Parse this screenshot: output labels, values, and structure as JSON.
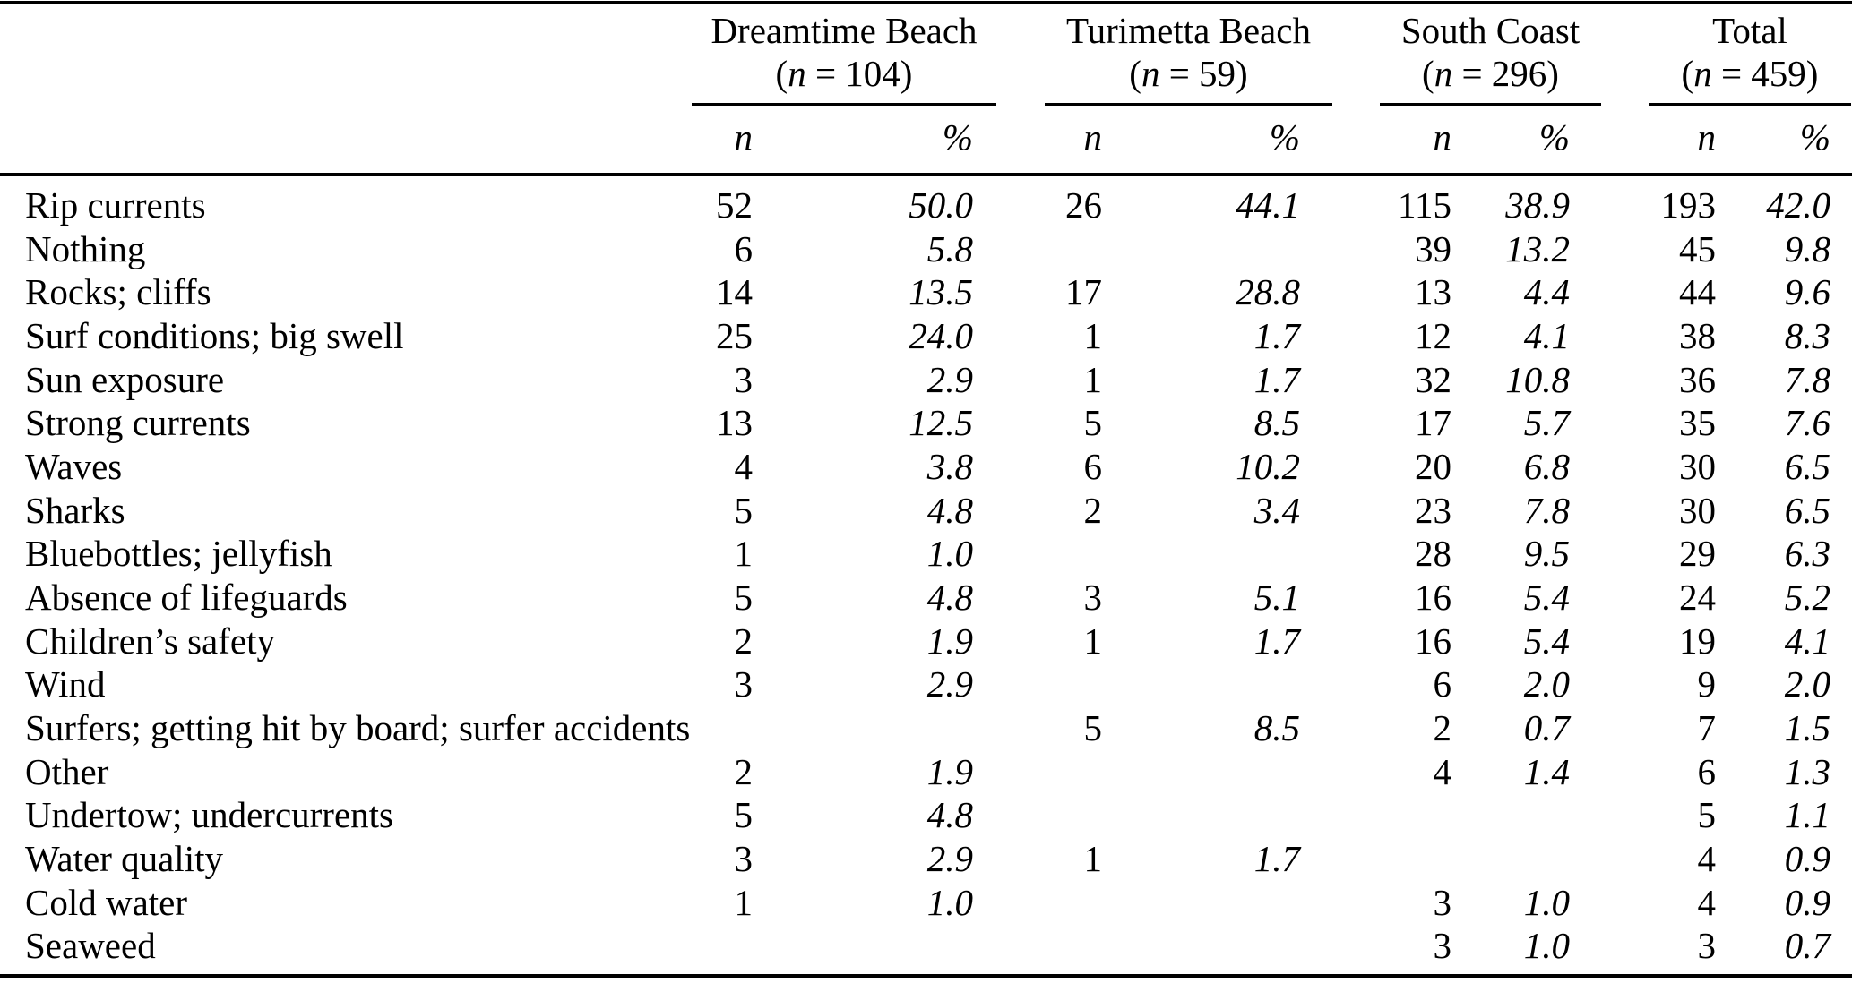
{
  "table": {
    "groups": [
      {
        "name": "Dreamtime Beach",
        "n_label": "(n = 104)"
      },
      {
        "name": "Turimetta Beach",
        "n_label": "(n = 59)"
      },
      {
        "name": "South Coast",
        "n_label": "(n = 296)"
      },
      {
        "name": "Total",
        "n_label": "(n = 459)"
      }
    ],
    "subheaders": {
      "count": "n",
      "percent": "%"
    },
    "rows": [
      {
        "label": "Rip currents",
        "values": [
          "52",
          "50.0",
          "26",
          "44.1",
          "115",
          "38.9",
          "193",
          "42.0"
        ]
      },
      {
        "label": "Nothing",
        "values": [
          "6",
          "5.8",
          "",
          "",
          "39",
          "13.2",
          "45",
          "9.8"
        ]
      },
      {
        "label": "Rocks; cliffs",
        "values": [
          "14",
          "13.5",
          "17",
          "28.8",
          "13",
          "4.4",
          "44",
          "9.6"
        ]
      },
      {
        "label": "Surf conditions; big swell",
        "values": [
          "25",
          "24.0",
          "1",
          "1.7",
          "12",
          "4.1",
          "38",
          "8.3"
        ]
      },
      {
        "label": "Sun exposure",
        "values": [
          "3",
          "2.9",
          "1",
          "1.7",
          "32",
          "10.8",
          "36",
          "7.8"
        ]
      },
      {
        "label": "Strong currents",
        "values": [
          "13",
          "12.5",
          "5",
          "8.5",
          "17",
          "5.7",
          "35",
          "7.6"
        ]
      },
      {
        "label": "Waves",
        "values": [
          "4",
          "3.8",
          "6",
          "10.2",
          "20",
          "6.8",
          "30",
          "6.5"
        ]
      },
      {
        "label": "Sharks",
        "values": [
          "5",
          "4.8",
          "2",
          "3.4",
          "23",
          "7.8",
          "30",
          "6.5"
        ]
      },
      {
        "label": "Bluebottles; jellyfish",
        "values": [
          "1",
          "1.0",
          "",
          "",
          "28",
          "9.5",
          "29",
          "6.3"
        ]
      },
      {
        "label": "Absence of lifeguards",
        "values": [
          "5",
          "4.8",
          "3",
          "5.1",
          "16",
          "5.4",
          "24",
          "5.2"
        ]
      },
      {
        "label": "Children’s safety",
        "values": [
          "2",
          "1.9",
          "1",
          "1.7",
          "16",
          "5.4",
          "19",
          "4.1"
        ]
      },
      {
        "label": "Wind",
        "values": [
          "3",
          "2.9",
          "",
          "",
          "6",
          "2.0",
          "9",
          "2.0"
        ]
      },
      {
        "label": "Surfers; getting hit by board; surfer accidents",
        "values": [
          "",
          "",
          "5",
          "8.5",
          "2",
          "0.7",
          "7",
          "1.5"
        ]
      },
      {
        "label": "Other",
        "values": [
          "2",
          "1.9",
          "",
          "",
          "4",
          "1.4",
          "6",
          "1.3"
        ]
      },
      {
        "label": "Undertow; undercurrents",
        "values": [
          "5",
          "4.8",
          "",
          "",
          "",
          "",
          "5",
          "1.1"
        ]
      },
      {
        "label": "Water quality",
        "values": [
          "3",
          "2.9",
          "1",
          "1.7",
          "",
          "",
          "4",
          "0.9"
        ]
      },
      {
        "label": "Cold water",
        "values": [
          "1",
          "1.0",
          "",
          "",
          "3",
          "1.0",
          "4",
          "0.9"
        ]
      },
      {
        "label": "Seaweed",
        "values": [
          "",
          "",
          "",
          "",
          "3",
          "1.0",
          "3",
          "0.7"
        ]
      }
    ]
  }
}
